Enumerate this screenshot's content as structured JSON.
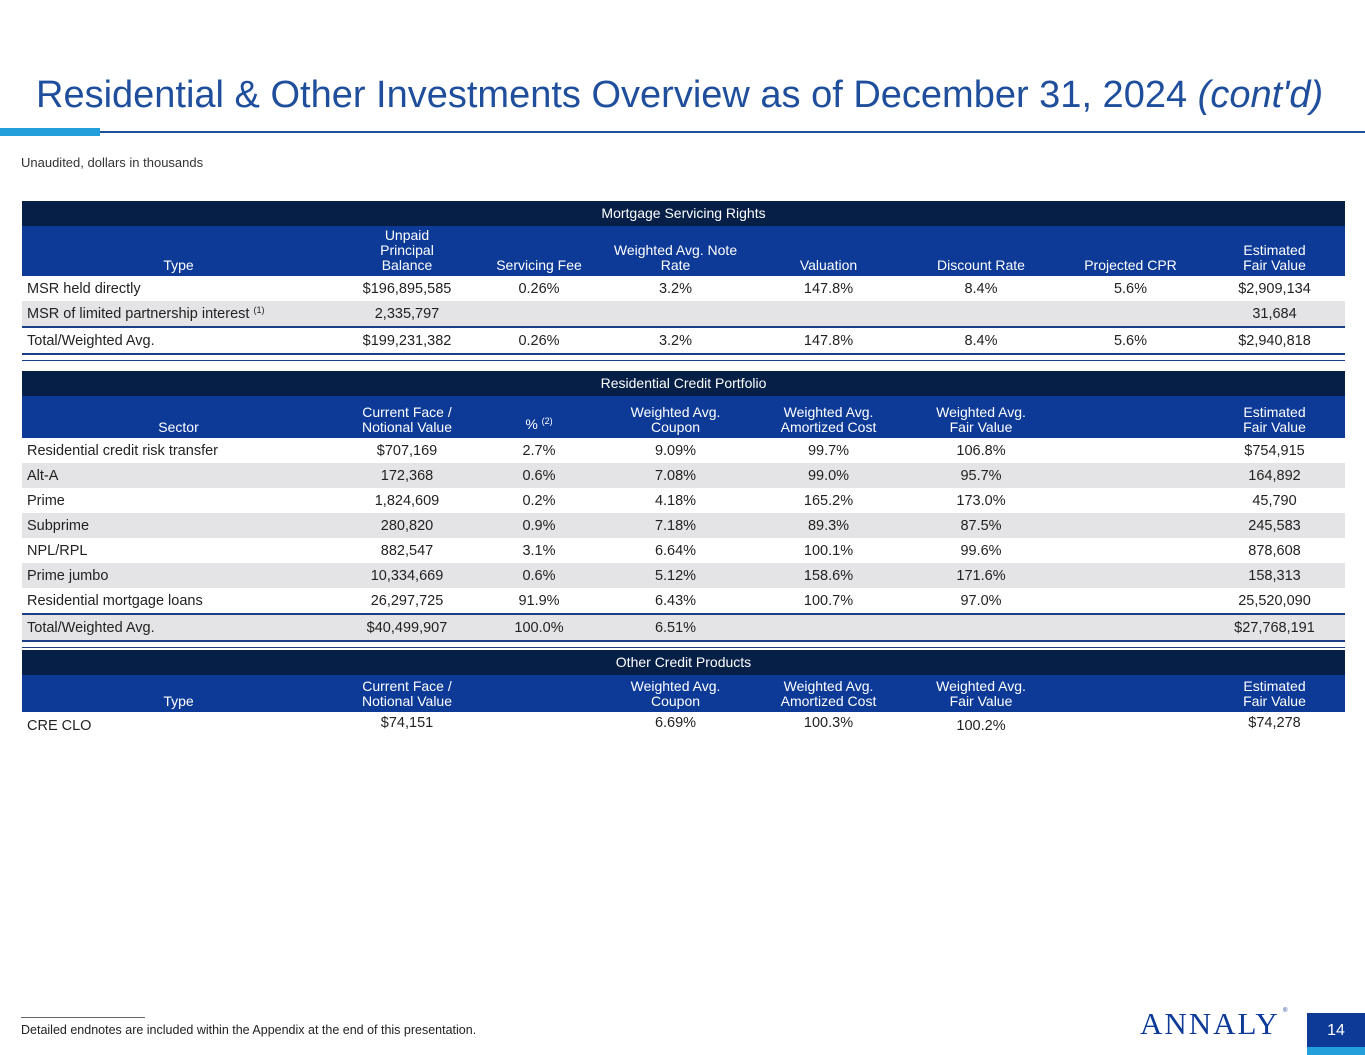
{
  "title": "Residential & Other Investments Overview as of December 31, 2024",
  "title_suffix": "(cont'd)",
  "subtitle": "Unaudited, dollars in thousands",
  "msr": {
    "band": "Mortgage Servicing Rights",
    "headers": [
      "Type",
      "Unpaid Principal Balance",
      "Servicing Fee",
      "Weighted Avg. Note Rate",
      "Valuation",
      "Discount Rate",
      "Projected CPR",
      "Estimated Fair Value"
    ],
    "rows": [
      {
        "label": "MSR held directly",
        "sup": "",
        "values": [
          "$196,895,585",
          "0.26%",
          "3.2%",
          "147.8%",
          "8.4%",
          "5.6%",
          "$2,909,134"
        ]
      },
      {
        "label": "MSR of limited partnership interest",
        "sup": "(1)",
        "values": [
          "2,335,797",
          "",
          "",
          "",
          "",
          "",
          "31,684"
        ]
      },
      {
        "label": "Total/Weighted Avg.",
        "sup": "",
        "values": [
          "$199,231,382",
          "0.26%",
          "3.2%",
          "147.8%",
          "8.4%",
          "5.6%",
          "$2,940,818"
        ]
      }
    ]
  },
  "rcp": {
    "band": "Residential Credit Portfolio",
    "headers": [
      "Sector",
      "Current Face / Notional Value",
      "%",
      "Weighted Avg. Coupon",
      "Weighted Avg. Amortized Cost",
      "Weighted Avg. Fair Value",
      "",
      "Estimated Fair Value"
    ],
    "pct_sup": "(2)",
    "rows": [
      {
        "label": "Residential credit risk transfer",
        "values": [
          "$707,169",
          "2.7%",
          "9.09%",
          "99.7%",
          "106.8%",
          "",
          "$754,915"
        ]
      },
      {
        "label": "Alt-A",
        "values": [
          "172,368",
          "0.6%",
          "7.08%",
          "99.0%",
          "95.7%",
          "",
          "164,892"
        ]
      },
      {
        "label": "Prime",
        "values": [
          "1,824,609",
          "0.2%",
          "4.18%",
          "165.2%",
          "173.0%",
          "",
          "45,790"
        ]
      },
      {
        "label": "Subprime",
        "values": [
          "280,820",
          "0.9%",
          "7.18%",
          "89.3%",
          "87.5%",
          "",
          "245,583"
        ]
      },
      {
        "label": "NPL/RPL",
        "values": [
          "882,547",
          "3.1%",
          "6.64%",
          "100.1%",
          "99.6%",
          "",
          "878,608"
        ]
      },
      {
        "label": "Prime jumbo",
        "values": [
          "10,334,669",
          "0.6%",
          "5.12%",
          "158.6%",
          "171.6%",
          "",
          "158,313"
        ]
      },
      {
        "label": "Residential mortgage loans",
        "values": [
          "26,297,725",
          "91.9%",
          "6.43%",
          "100.7%",
          "97.0%",
          "",
          "25,520,090"
        ]
      },
      {
        "label": "Total/Weighted Avg.",
        "values": [
          "$40,499,907",
          "100.0%",
          "6.51%",
          "",
          "",
          "",
          "$27,768,191"
        ]
      }
    ]
  },
  "ocp": {
    "band": "Other Credit Products",
    "headers": [
      "Type",
      "Current Face / Notional Value",
      "",
      "Weighted Avg. Coupon",
      "Weighted Avg. Amortized Cost",
      "Weighted Avg. Fair Value",
      "",
      "Estimated Fair Value"
    ],
    "rows": [
      {
        "label": "CRE CLO",
        "values": [
          "$74,151",
          "",
          "6.69%",
          "100.3%",
          "100.2%",
          "",
          "$74,278"
        ]
      }
    ]
  },
  "footnote": "Detailed endnotes are included within the Appendix at the end of this presentation.",
  "logo": "ANNALY",
  "logo_mark": "®",
  "page_number": "14",
  "colors": {
    "navy": "#061f46",
    "blue": "#0c3a96",
    "accent": "#22a0dc",
    "alt_row": "#e4e4e6"
  }
}
